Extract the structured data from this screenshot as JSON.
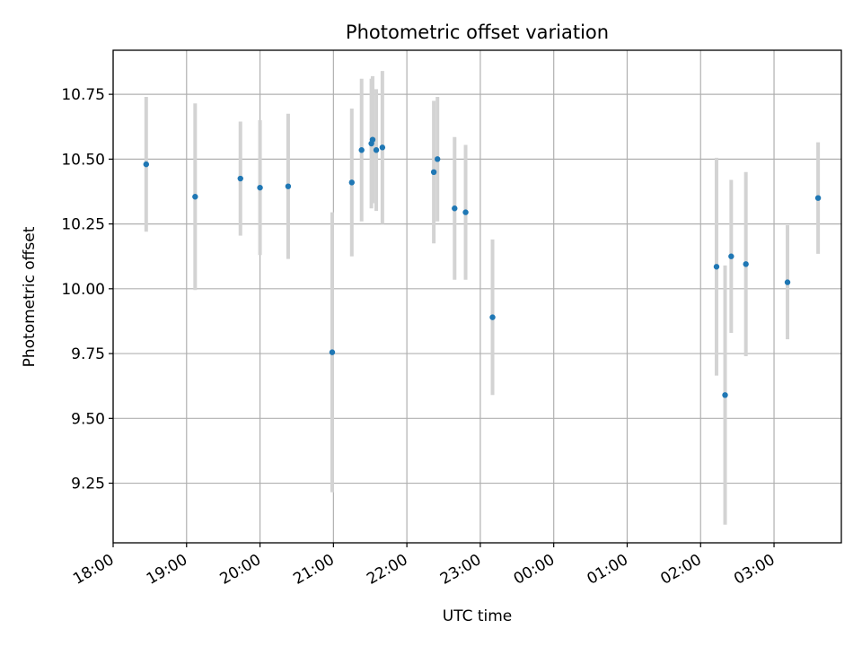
{
  "chart_data": {
    "type": "scatter",
    "title": "Photometric offset variation",
    "xlabel": "UTC time",
    "ylabel": "Photometric offset",
    "x_unit": "UTC",
    "x_ticks": [
      {
        "t": "18:00",
        "label": "18:00"
      },
      {
        "t": "19:00",
        "label": "19:00"
      },
      {
        "t": "20:00",
        "label": "20:00"
      },
      {
        "t": "21:00",
        "label": "21:00"
      },
      {
        "t": "22:00",
        "label": "22:00"
      },
      {
        "t": "23:00",
        "label": "23:00"
      },
      {
        "t": "00:00+1",
        "label": "00:00"
      },
      {
        "t": "01:00+1",
        "label": "01:00"
      },
      {
        "t": "02:00+1",
        "label": "02:00"
      },
      {
        "t": "03:00+1",
        "label": "03:00"
      }
    ],
    "xlim": [
      "18:00",
      "03:55+1"
    ],
    "y_ticks": [
      9.25,
      9.5,
      9.75,
      10.0,
      10.25,
      10.5,
      10.75
    ],
    "ylim": [
      9.02,
      10.92
    ],
    "grid": true,
    "point_color": "#1f77b4",
    "errorbar_color": "#d3d3d3",
    "points": [
      {
        "x": "18:27",
        "y": 10.48,
        "err": 0.26
      },
      {
        "x": "19:07",
        "y": 10.355,
        "err": 0.36
      },
      {
        "x": "19:44",
        "y": 10.425,
        "err": 0.22
      },
      {
        "x": "20:00",
        "y": 10.39,
        "err": 0.26
      },
      {
        "x": "20:23",
        "y": 10.395,
        "err": 0.28
      },
      {
        "x": "20:59",
        "y": 9.755,
        "err": 0.54
      },
      {
        "x": "21:15",
        "y": 10.41,
        "err": 0.285
      },
      {
        "x": "21:23",
        "y": 10.535,
        "err": 0.275
      },
      {
        "x": "21:31",
        "y": 10.56,
        "err": 0.25
      },
      {
        "x": "21:32",
        "y": 10.575,
        "err": 0.245
      },
      {
        "x": "21:35",
        "y": 10.535,
        "err": 0.235
      },
      {
        "x": "21:40",
        "y": 10.545,
        "err": 0.295
      },
      {
        "x": "22:22",
        "y": 10.45,
        "err": 0.275
      },
      {
        "x": "22:25",
        "y": 10.5,
        "err": 0.24
      },
      {
        "x": "22:39",
        "y": 10.31,
        "err": 0.275
      },
      {
        "x": "22:48",
        "y": 10.295,
        "err": 0.26
      },
      {
        "x": "23:10",
        "y": 9.89,
        "err": 0.3
      },
      {
        "x": "02:13+1",
        "y": 10.085,
        "err": 0.42
      },
      {
        "x": "02:20+1",
        "y": 9.59,
        "err": 0.5
      },
      {
        "x": "02:25+1",
        "y": 10.125,
        "err": 0.295
      },
      {
        "x": "02:37+1",
        "y": 10.095,
        "err": 0.355
      },
      {
        "x": "03:11+1",
        "y": 10.025,
        "err": 0.22
      },
      {
        "x": "03:36+1",
        "y": 10.35,
        "err": 0.215
      }
    ]
  }
}
